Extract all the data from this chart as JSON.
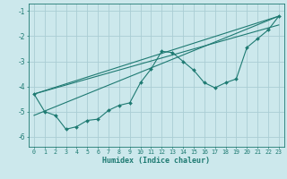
{
  "xlabel": "Humidex (Indice chaleur)",
  "xlim": [
    -0.5,
    23.5
  ],
  "ylim": [
    -6.4,
    -0.7
  ],
  "yticks": [
    -6,
    -5,
    -4,
    -3,
    -2,
    -1
  ],
  "xticks": [
    0,
    1,
    2,
    3,
    4,
    5,
    6,
    7,
    8,
    9,
    10,
    11,
    12,
    13,
    14,
    15,
    16,
    17,
    18,
    19,
    20,
    21,
    22,
    23
  ],
  "bg_color": "#cce8ec",
  "grid_color": "#aacdd4",
  "line_color": "#1e7a72",
  "line1_x": [
    0,
    1,
    2,
    3,
    4,
    5,
    6,
    7,
    8,
    9,
    10,
    11,
    12,
    13,
    14,
    15,
    16,
    17,
    18,
    19,
    20,
    21,
    22,
    23
  ],
  "line1_y": [
    -4.3,
    -5.0,
    -5.15,
    -5.7,
    -5.6,
    -5.35,
    -5.3,
    -4.95,
    -4.75,
    -4.65,
    -3.85,
    -3.3,
    -2.6,
    -2.65,
    -3.0,
    -3.35,
    -3.85,
    -4.05,
    -3.85,
    -3.7,
    -2.45,
    -2.1,
    -1.75,
    -1.2
  ],
  "line2_x": [
    0,
    23
  ],
  "line2_y": [
    -4.3,
    -1.2
  ],
  "line3_x": [
    0,
    23
  ],
  "line3_y": [
    -4.3,
    -1.55
  ],
  "line4_x": [
    0,
    23
  ],
  "line4_y": [
    -5.15,
    -1.2
  ]
}
